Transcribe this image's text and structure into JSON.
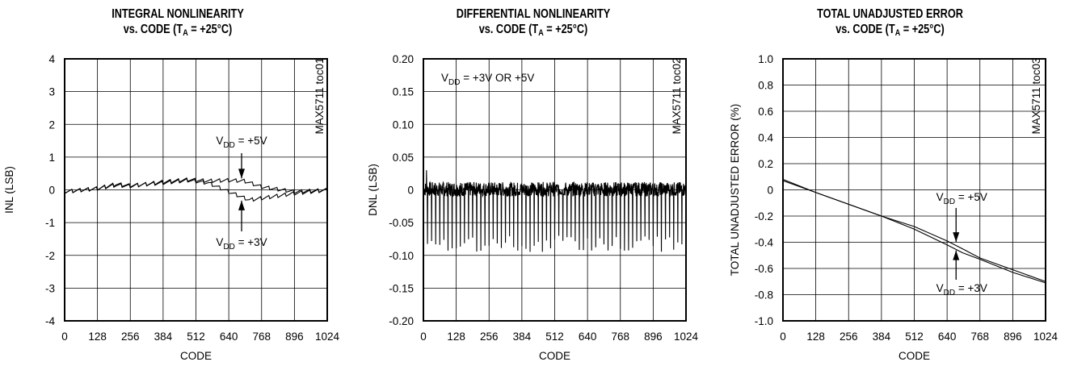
{
  "chart_data": [
    {
      "id": "inl",
      "type": "line",
      "title_line1": "INTEGRAL NONLINEARITY",
      "title_line2_pre": "vs. CODE (T",
      "title_line2_sub": "A",
      "title_line2_post": " = +25°C)",
      "xlabel": "CODE",
      "ylabel": "INL (LSB)",
      "xlim": [
        0,
        1024
      ],
      "ylim": [
        -4,
        4
      ],
      "xticks": [
        "0",
        "128",
        "256",
        "384",
        "512",
        "640",
        "768",
        "896",
        "1024"
      ],
      "yticks": [
        "4",
        "3",
        "2",
        "1",
        "0",
        "-1",
        "-2",
        "-3",
        "-4"
      ],
      "grid": true,
      "side_label": "MAX5711 toc01",
      "series": [
        {
          "label_pre": "V",
          "label_sub": "DD",
          "label_post": " = +5V",
          "x": [
            0,
            128,
            200,
            256,
            384,
            480,
            560,
            640,
            700,
            768,
            896,
            1024
          ],
          "y": [
            -0.05,
            0.05,
            0.15,
            0.12,
            0.25,
            0.32,
            0.28,
            0.3,
            0.28,
            0.1,
            -0.05,
            0.0
          ]
        },
        {
          "label_pre": "V",
          "label_sub": "DD",
          "label_post": " = +3V",
          "x": [
            0,
            128,
            200,
            256,
            384,
            480,
            560,
            640,
            720,
            768,
            896,
            1024
          ],
          "y": [
            -0.05,
            0.05,
            0.18,
            0.14,
            0.22,
            0.3,
            0.22,
            -0.05,
            -0.3,
            -0.25,
            -0.1,
            0.0
          ]
        }
      ]
    },
    {
      "id": "dnl",
      "type": "line",
      "title_line1": "DIFFERENTIAL NONLINEARITY",
      "title_line2_pre": "vs. CODE (T",
      "title_line2_sub": "A",
      "title_line2_post": " = +25°C)",
      "xlabel": "CODE",
      "ylabel": "DNL (LSB)",
      "xlim": [
        0,
        1024
      ],
      "ylim": [
        -0.2,
        0.2
      ],
      "xticks": [
        "0",
        "128",
        "256",
        "384",
        "512",
        "640",
        "768",
        "896",
        "1024"
      ],
      "yticks": [
        "0.20",
        "0.15",
        "0.10",
        "0.05",
        "0",
        "-0.05",
        "-0.10",
        "-0.15",
        "-0.20"
      ],
      "grid": true,
      "side_label": "MAX5711 toc02",
      "annotation_pre": "V",
      "annotation_sub": "DD",
      "annotation_post": " = +3V OR +5V",
      "series": [
        {
          "noise_band": [
            -0.01,
            0.012
          ],
          "spike_every": 16,
          "spike_min": -0.095,
          "spike_max": -0.07,
          "peak_at": 12,
          "peak_value": 0.03
        }
      ]
    },
    {
      "id": "tue",
      "type": "line",
      "title_line1": "TOTAL UNADJUSTED ERROR",
      "title_line2_pre": "vs. CODE (T",
      "title_line2_sub": "A",
      "title_line2_post": " = +25°C)",
      "xlabel": "CODE",
      "ylabel": "TOTAL UNADJUSTED ERROR (%)",
      "xlim": [
        0,
        1024
      ],
      "ylim": [
        -1.0,
        1.0
      ],
      "xticks": [
        "0",
        "128",
        "256",
        "384",
        "512",
        "640",
        "768",
        "896",
        "1024"
      ],
      "yticks": [
        "1.0",
        "0.8",
        "0.6",
        "0.4",
        "0.2",
        "0",
        "-0.2",
        "-0.4",
        "-0.6",
        "-0.8",
        "-1.0"
      ],
      "grid": true,
      "side_label": "MAX5711 toc03",
      "series": [
        {
          "label_pre": "V",
          "label_sub": "DD",
          "label_post": " = +5V",
          "x": [
            0,
            128,
            256,
            384,
            512,
            640,
            700,
            768,
            896,
            1024
          ],
          "y": [
            0.07,
            -0.02,
            -0.11,
            -0.2,
            -0.28,
            -0.39,
            -0.45,
            -0.52,
            -0.61,
            -0.7
          ]
        },
        {
          "label_pre": "V",
          "label_sub": "DD",
          "label_post": " = +3V",
          "x": [
            0,
            128,
            256,
            384,
            512,
            640,
            700,
            768,
            896,
            1024
          ],
          "y": [
            0.08,
            -0.02,
            -0.11,
            -0.2,
            -0.3,
            -0.42,
            -0.48,
            -0.53,
            -0.63,
            -0.71
          ]
        }
      ]
    }
  ]
}
